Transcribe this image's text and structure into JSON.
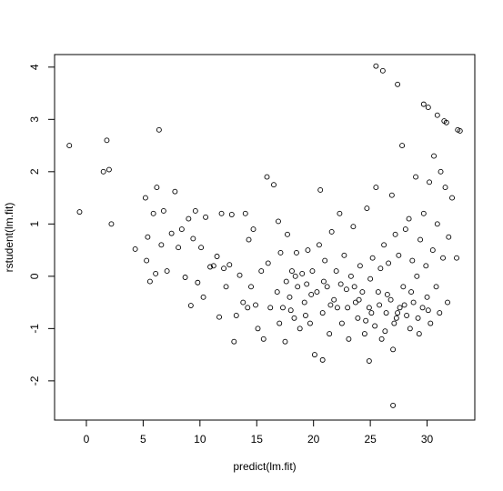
{
  "chart_data": {
    "type": "scatter",
    "xlabel": "predict(lm.fit)",
    "ylabel": "rstudent(lm.fit)",
    "xlim": [
      -2.8,
      34.2
    ],
    "ylim": [
      -2.75,
      4.24
    ],
    "xticks": [
      0,
      5,
      10,
      15,
      20,
      25,
      30
    ],
    "yticks": [
      -2,
      -1,
      0,
      1,
      2,
      3,
      4
    ],
    "color": "#000000",
    "x": [
      -1.5,
      -0.6,
      1.5,
      2.0,
      1.8,
      2.2,
      6.4,
      25.5,
      26.1,
      27.4,
      29.7,
      30.1,
      30.9,
      31.5,
      31.7,
      32.7,
      32.9,
      27.0,
      24.9,
      20.8,
      4.3,
      5.2,
      5.4,
      5.3,
      5.6,
      5.9,
      6.2,
      6.1,
      6.6,
      6.8,
      7.1,
      7.5,
      7.8,
      8.1,
      8.4,
      8.7,
      9.0,
      9.2,
      9.4,
      9.6,
      9.8,
      10.1,
      10.3,
      10.5,
      10.9,
      11.2,
      11.5,
      11.7,
      11.9,
      12.1,
      12.3,
      12.6,
      12.8,
      13.0,
      13.2,
      13.5,
      13.8,
      14.0,
      14.2,
      14.3,
      14.5,
      14.7,
      14.9,
      15.1,
      15.4,
      15.6,
      15.9,
      16.0,
      16.2,
      16.5,
      16.8,
      16.9,
      17.1,
      17.3,
      17.5,
      17.7,
      17.9,
      18.1,
      18.3,
      18.5,
      18.6,
      18.8,
      19.0,
      19.2,
      19.4,
      19.5,
      19.7,
      19.9,
      20.1,
      20.3,
      20.5,
      20.6,
      20.8,
      21.0,
      21.2,
      21.4,
      21.6,
      21.8,
      22.0,
      22.1,
      22.3,
      22.5,
      22.7,
      22.9,
      23.1,
      23.3,
      23.5,
      23.7,
      23.9,
      24.1,
      24.3,
      24.5,
      24.7,
      24.9,
      25.0,
      25.2,
      25.4,
      25.5,
      25.7,
      25.9,
      26.0,
      26.2,
      26.4,
      26.6,
      26.8,
      26.9,
      27.0,
      27.2,
      27.3,
      27.5,
      27.6,
      27.8,
      27.9,
      28.1,
      28.2,
      28.4,
      28.5,
      28.7,
      28.8,
      29.0,
      29.1,
      29.3,
      29.4,
      29.6,
      29.7,
      29.9,
      30.0,
      30.2,
      30.3,
      30.5,
      30.6,
      30.8,
      30.9,
      31.1,
      31.2,
      31.4,
      31.6,
      31.8,
      31.9,
      32.2,
      32.6,
      17.0,
      18.0,
      19.8,
      21.5,
      22.4,
      23.0,
      24.0,
      24.6,
      25.8,
      26.5,
      27.4,
      28.0,
      28.6,
      29.2,
      30.1,
      27.1,
      26.3,
      25.1,
      23.6,
      20.9,
      19.3,
      18.4,
      17.6
    ],
    "y": [
      2.5,
      1.23,
      2.0,
      2.04,
      2.6,
      1.0,
      2.8,
      4.02,
      3.93,
      3.67,
      3.29,
      3.23,
      3.08,
      2.97,
      2.94,
      2.8,
      2.78,
      -2.47,
      -1.62,
      -1.6,
      0.52,
      1.5,
      0.75,
      0.3,
      -0.1,
      1.2,
      1.7,
      0.05,
      0.6,
      1.25,
      0.1,
      0.82,
      1.62,
      0.55,
      0.9,
      -0.02,
      1.1,
      -0.56,
      0.72,
      1.25,
      -0.12,
      0.55,
      -0.4,
      1.13,
      0.18,
      0.2,
      0.38,
      -0.78,
      1.2,
      0.15,
      -0.2,
      0.22,
      1.18,
      -1.25,
      -0.75,
      0.02,
      -0.5,
      1.2,
      -0.6,
      0.7,
      -0.2,
      0.9,
      -0.55,
      -1.0,
      0.1,
      -1.2,
      1.9,
      0.25,
      -0.6,
      1.75,
      -0.3,
      1.05,
      0.45,
      -0.6,
      -1.25,
      0.8,
      -0.4,
      0.1,
      -0.8,
      0.45,
      -0.2,
      -1.0,
      0.05,
      -0.5,
      -0.15,
      0.5,
      -0.9,
      0.1,
      -1.5,
      -0.3,
      0.6,
      1.65,
      -0.7,
      0.3,
      -0.2,
      -1.1,
      0.85,
      -0.45,
      0.1,
      -0.6,
      1.2,
      -0.9,
      0.4,
      -0.25,
      -1.2,
      0.0,
      0.95,
      -0.5,
      -0.8,
      0.2,
      -0.3,
      -1.1,
      1.3,
      -0.6,
      -0.05,
      0.35,
      -0.95,
      1.7,
      -0.3,
      0.15,
      -1.2,
      0.6,
      -0.7,
      0.25,
      -0.45,
      1.55,
      -1.4,
      0.8,
      -0.8,
      0.4,
      -0.6,
      2.5,
      -0.2,
      0.9,
      -0.75,
      1.1,
      -1.0,
      0.3,
      -0.5,
      1.9,
      0.0,
      -1.1,
      0.7,
      -0.6,
      1.2,
      0.2,
      -0.4,
      1.8,
      -0.9,
      0.5,
      2.3,
      -0.2,
      1.0,
      -0.7,
      2.0,
      0.35,
      1.7,
      -0.5,
      0.75,
      1.5,
      0.35,
      -0.9,
      -0.65,
      -0.35,
      -0.55,
      -0.15,
      -0.6,
      -0.45,
      -0.85,
      -0.55,
      -0.35,
      -0.7,
      -0.55,
      -0.3,
      -0.8,
      -0.65,
      -0.9,
      -1.05,
      -0.7,
      -0.2,
      -0.1,
      -0.75,
      0.0,
      -0.1
    ]
  }
}
